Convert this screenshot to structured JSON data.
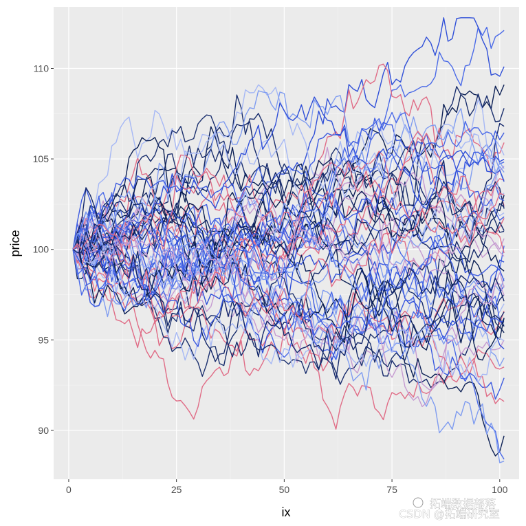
{
  "chart_data": {
    "type": "line",
    "xlabel": "ix",
    "ylabel": "price",
    "xlim": [
      -3.5,
      104.5
    ],
    "ylim": [
      87.3,
      113.4
    ],
    "x_ticks": [
      0,
      25,
      50,
      75,
      100
    ],
    "x_tick_labels": [
      "0",
      "25",
      "50",
      "75",
      "100"
    ],
    "y_ticks": [
      90,
      95,
      100,
      105,
      110
    ],
    "y_tick_labels": [
      "90",
      "95",
      "100",
      "105",
      "110"
    ],
    "grid": true,
    "background": "#ebebeb",
    "color_palette": [
      "#1a2f6e",
      "#0b1f54",
      "#2f4fd8",
      "#4a6ae8",
      "#7f9cf0",
      "#a6b8f5",
      "#c59ad1",
      "#e06c86",
      "#3d5be0",
      "#14286b"
    ],
    "series_count": 60,
    "n_steps": 100,
    "start_value": 100,
    "series_summary": [
      {
        "end": 112.1,
        "color": "#4a6ae8"
      },
      {
        "end": 110.1,
        "color": "#2f4fd8"
      },
      {
        "end": 109.1,
        "color": "#0b1f54"
      },
      {
        "end": 107.8,
        "color": "#1a2f6e"
      },
      {
        "end": 106.8,
        "color": "#14286b"
      },
      {
        "end": 105.9,
        "color": "#e06c86"
      },
      {
        "end": 105.2,
        "color": "#a6b8f5"
      },
      {
        "end": 104.6,
        "color": "#c59ad1"
      },
      {
        "end": 103.8,
        "color": "#7f9cf0"
      },
      {
        "end": 103.0,
        "color": "#0b1f54"
      },
      {
        "end": 102.4,
        "color": "#e06c86"
      },
      {
        "end": 101.8,
        "color": "#3d5be0"
      },
      {
        "end": 101.0,
        "color": "#1a2f6e"
      },
      {
        "end": 100.6,
        "color": "#c59ad1"
      },
      {
        "end": 100.2,
        "color": "#4a6ae8"
      },
      {
        "end": 99.8,
        "color": "#e06c86"
      },
      {
        "end": 99.3,
        "color": "#2f4fd8"
      },
      {
        "end": 98.8,
        "color": "#0b1f54"
      },
      {
        "end": 98.4,
        "color": "#7f9cf0"
      },
      {
        "end": 98.0,
        "color": "#3d5be0"
      },
      {
        "end": 97.5,
        "color": "#14286b"
      },
      {
        "end": 97.0,
        "color": "#a6b8f5"
      },
      {
        "end": 96.6,
        "color": "#e06c86"
      },
      {
        "end": 96.2,
        "color": "#1a2f6e"
      },
      {
        "end": 95.8,
        "color": "#4a6ae8"
      },
      {
        "end": 95.4,
        "color": "#0b1f54"
      },
      {
        "end": 95.0,
        "color": "#c59ad1"
      },
      {
        "end": 94.5,
        "color": "#2f4fd8"
      },
      {
        "end": 94.0,
        "color": "#7f9cf0"
      },
      {
        "end": 93.5,
        "color": "#e06c86"
      },
      {
        "end": 92.9,
        "color": "#3d5be0"
      },
      {
        "end": 91.6,
        "color": "#e06c86"
      },
      {
        "end": 89.7,
        "color": "#0b1f54"
      },
      {
        "end": 88.4,
        "color": "#4a6ae8"
      },
      {
        "end": 88.3,
        "color": "#7f9cf0"
      }
    ]
  },
  "watermark": {
    "line1": "拓端数据部落",
    "line2": "CSDN @拓端研究室"
  }
}
